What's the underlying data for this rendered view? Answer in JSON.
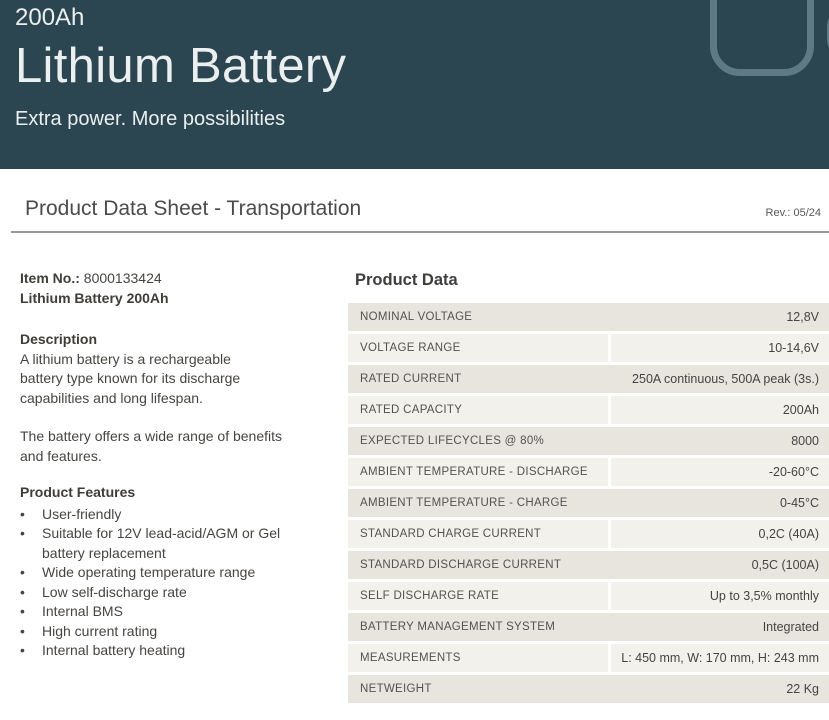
{
  "colors": {
    "header_bg": "#2B4650",
    "header_text": "#EBEFF0",
    "icon_stroke": "#5E7A84",
    "row_dark": "#E8E5DF",
    "row_light": "#F3F1EC",
    "rule": "#97989A"
  },
  "header": {
    "capacity": "200Ah",
    "title": "Lithium Battery",
    "subtitle": "Extra power. More possibilities"
  },
  "doc": {
    "title": "Product Data Sheet - Transportation",
    "revision": "Rev.: 05/24"
  },
  "left": {
    "item_no_label": "Item No.:",
    "item_no_value": "8000133424",
    "item_name": "Lithium Battery 200Ah",
    "description_heading": "Description",
    "description_para1": "A lithium battery is a rechargeable\nbattery type known for its discharge\ncapabilities and long lifespan.",
    "description_para2": "The battery offers a wide range of benefits\nand features.",
    "features_heading": "Product Features",
    "bullet_char": "•",
    "features": [
      "User-friendly",
      "Suitable for 12V lead-acid/AGM or Gel\nbattery replacement",
      "Wide operating temperature range",
      "Low self-discharge rate",
      "Internal BMS",
      "High current rating",
      "Internal battery heating"
    ]
  },
  "table": {
    "heading": "Product Data",
    "rows": [
      {
        "label": "NOMINAL VOLTAGE",
        "value": "12,8V"
      },
      {
        "label": "VOLTAGE RANGE",
        "value": "10-14,6V"
      },
      {
        "label": "RATED CURRENT",
        "value": "250A continuous, 500A peak (3s.)"
      },
      {
        "label": "RATED CAPACITY",
        "value": "200Ah"
      },
      {
        "label": "EXPECTED LIFECYCLES @ 80%",
        "value": "8000"
      },
      {
        "label": "AMBIENT TEMPERATURE - DISCHARGE",
        "value": "-20-60°C"
      },
      {
        "label": "AMBIENT TEMPERATURE - CHARGE",
        "value": "0-45°C"
      },
      {
        "label": "STANDARD CHARGE CURRENT",
        "value": "0,2C (40A)"
      },
      {
        "label": "STANDARD DISCHARGE CURRENT",
        "value": "0,5C (100A)"
      },
      {
        "label": "SELF DISCHARGE RATE",
        "value": "Up to 3,5% monthly"
      },
      {
        "label": "BATTERY MANAGEMENT SYSTEM",
        "value": "Integrated"
      },
      {
        "label": "MEASUREMENTS",
        "value": "L: 450 mm, W: 170 mm, H: 243 mm"
      },
      {
        "label": "NETWEIGHT",
        "value": "22 Kg"
      }
    ]
  }
}
